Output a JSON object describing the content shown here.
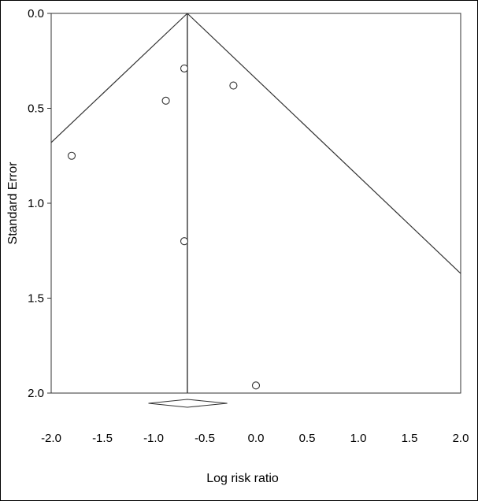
{
  "chart_data": {
    "type": "scatter",
    "subtype": "funnel-plot",
    "title": "",
    "xlabel": "Log risk ratio",
    "ylabel": "Standard Error",
    "xlim": [
      -2.0,
      2.0
    ],
    "ylim": [
      0.0,
      2.0
    ],
    "y_inverted": true,
    "x_ticks": [
      "-2.0",
      "-1.5",
      "-1.0",
      "-0.5",
      "0.0",
      "0.5",
      "1.0",
      "1.5",
      "2.0"
    ],
    "y_ticks": [
      "0.0",
      "0.5",
      "1.0",
      "1.5",
      "2.0"
    ],
    "grid": false,
    "points": [
      {
        "x": -1.8,
        "y": 0.75
      },
      {
        "x": -0.7,
        "y": 0.29
      },
      {
        "x": -0.88,
        "y": 0.46
      },
      {
        "x": -0.22,
        "y": 0.38
      },
      {
        "x": -0.7,
        "y": 1.2
      },
      {
        "x": 0.0,
        "y": 1.96
      }
    ],
    "pooled_estimate": -0.67,
    "funnel_limits": {
      "apex": [
        -0.67,
        0.0
      ],
      "left_edge": [
        -2.0,
        0.68
      ],
      "right_edge": [
        2.0,
        1.37
      ]
    },
    "summary_diamond": {
      "center": -0.67,
      "lower": -1.05,
      "upper": -0.28
    },
    "colors": {
      "stroke": "#333333",
      "text": "#000000",
      "background": "#ffffff"
    }
  }
}
